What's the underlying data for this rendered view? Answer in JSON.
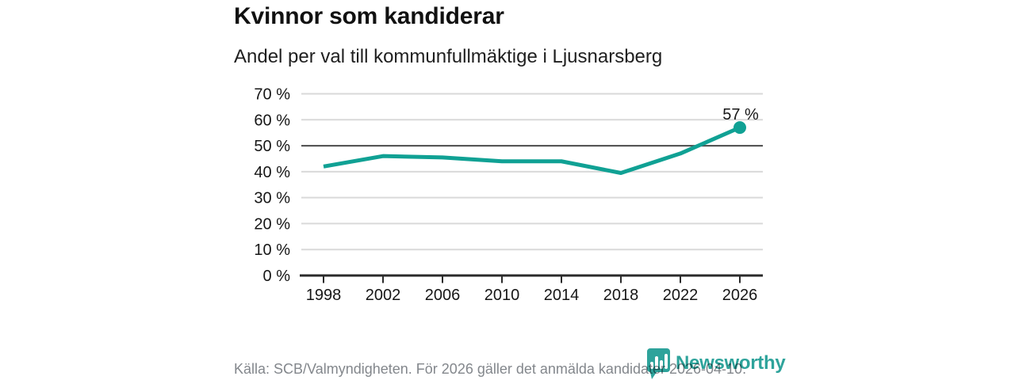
{
  "header": {
    "title": "Kvinnor som kandiderar",
    "subtitle": "Andel per val till kommunfullmäktige i Ljusnarsberg"
  },
  "chart_data": {
    "type": "line",
    "title": "Kvinnor som kandiderar",
    "subtitle": "Andel per val till kommunfullmäktige i Ljusnarsberg",
    "categories": [
      "1998",
      "2002",
      "2006",
      "2010",
      "2014",
      "2018",
      "2022",
      "2026"
    ],
    "values": [
      42,
      46,
      45.5,
      44,
      44,
      39.5,
      47,
      57
    ],
    "unit": "%",
    "xlabel": "",
    "ylabel": "",
    "ylim": [
      0,
      70
    ],
    "yticks": [
      {
        "value": 0,
        "label": "0 %"
      },
      {
        "value": 10,
        "label": "10 %"
      },
      {
        "value": 20,
        "label": "20 %"
      },
      {
        "value": 30,
        "label": "30 %"
      },
      {
        "value": 40,
        "label": "40 %"
      },
      {
        "value": 50,
        "label": "50 %"
      },
      {
        "value": 60,
        "label": "60 %"
      },
      {
        "value": 70,
        "label": "70 %"
      }
    ],
    "grid": "horizontal",
    "emphasized_gridline": 50,
    "legend": "none",
    "annotation": "57 %",
    "line_color": "#10a194",
    "colors": {
      "text": "#161616",
      "axis": "#2b2b2b",
      "grid": "#d9d9d9",
      "grid_strong": "#4a4a4a"
    }
  },
  "footer": {
    "source": "Källa: SCB/Valmyndigheten. För 2026 gäller det anmälda kandidater 2026-04-10.",
    "brand": "Newsworthy",
    "brand_color": "#2ea39b"
  }
}
